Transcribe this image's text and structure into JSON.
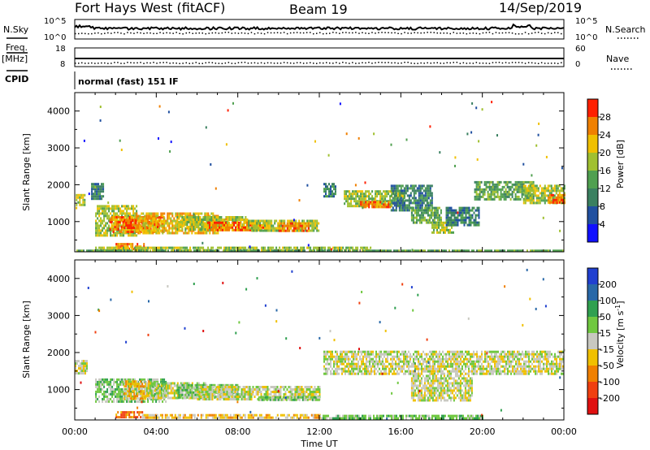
{
  "header": {
    "station": "Fort Hays West (fitACF)",
    "beam": "Beam 19",
    "date": "14/Sep/2019"
  },
  "side_labels": {
    "nsky": "N.Sky",
    "freq": "Freq.",
    "freq_unit": "[MHz]",
    "cpid": "CPID",
    "nsearch": "N.Search",
    "nave": "Nave"
  },
  "mode_text": "normal (fast) 151 IF",
  "chart_data": [
    {
      "type": "line",
      "panel": "noise",
      "series": [
        {
          "name": "N.Sky"
        },
        {
          "name": "N.Search"
        }
      ],
      "y_tick_labels": {
        "left": [
          "10^5",
          "10^0"
        ],
        "right": [
          "10^5",
          "10^0"
        ]
      }
    },
    {
      "type": "line",
      "panel": "frequency",
      "series": [
        {
          "name": "Freq."
        },
        {
          "name": "Nave"
        }
      ],
      "y_tick_labels": {
        "left": [
          "18",
          "8"
        ],
        "right": [
          "60",
          "0"
        ]
      }
    },
    {
      "type": "heatmap",
      "panel": "power",
      "ylabel": "Slant Range [km]",
      "xlim": [
        0,
        24
      ],
      "ylim": [
        180,
        4500
      ],
      "y_ticks": [
        1000,
        2000,
        3000,
        4000
      ],
      "colorbar": {
        "label": "Power [dB]",
        "range": [
          0,
          32
        ],
        "ticks": [
          "4",
          "8",
          "12",
          "16",
          "20",
          "24",
          "28"
        ],
        "colors": [
          "#1010ff",
          "#2050a0",
          "#3a8060",
          "#50a050",
          "#a0c030",
          "#f0c000",
          "#f08000",
          "#ff2000"
        ]
      },
      "regions": [
        {
          "t0": 0.05,
          "t1": 0.5,
          "r0": 1450,
          "r1": 1750,
          "level": 4
        },
        {
          "t0": 0.8,
          "t1": 1.4,
          "r0": 1650,
          "r1": 2050,
          "level": 2
        },
        {
          "t0": 1.0,
          "t1": 3.0,
          "r0": 650,
          "r1": 1450,
          "level": 4
        },
        {
          "t0": 1.7,
          "t1": 4.4,
          "r0": 750,
          "r1": 1150,
          "level": 6
        },
        {
          "t0": 2.4,
          "t1": 3.6,
          "r0": 820,
          "r1": 1060,
          "level": 7
        },
        {
          "t0": 3.0,
          "t1": 7.0,
          "r0": 700,
          "r1": 1250,
          "level": 5
        },
        {
          "t0": 5.0,
          "t1": 8.5,
          "r0": 780,
          "r1": 1150,
          "level": 4
        },
        {
          "t0": 6.5,
          "t1": 9.5,
          "r0": 800,
          "r1": 1000,
          "level": 6
        },
        {
          "t0": 8.5,
          "t1": 12.0,
          "r0": 720,
          "r1": 1050,
          "level": 4
        },
        {
          "t0": 10.0,
          "t1": 11.5,
          "r0": 780,
          "r1": 980,
          "level": 6
        },
        {
          "t0": 12.2,
          "t1": 12.8,
          "r0": 1700,
          "r1": 2050,
          "level": 2
        },
        {
          "t0": 13.2,
          "t1": 16.2,
          "r0": 1400,
          "r1": 1850,
          "level": 4
        },
        {
          "t0": 14.0,
          "t1": 15.5,
          "r0": 1420,
          "r1": 1560,
          "level": 6
        },
        {
          "t0": 15.5,
          "t1": 17.5,
          "r0": 1300,
          "r1": 2000,
          "level": 2
        },
        {
          "t0": 16.5,
          "t1": 18.0,
          "r0": 1000,
          "r1": 1400,
          "level": 3
        },
        {
          "t0": 17.5,
          "t1": 18.6,
          "r0": 700,
          "r1": 1000,
          "level": 4
        },
        {
          "t0": 18.2,
          "t1": 19.8,
          "r0": 900,
          "r1": 1400,
          "level": 2
        },
        {
          "t0": 19.6,
          "t1": 22.5,
          "r0": 1600,
          "r1": 2100,
          "level": 3
        },
        {
          "t0": 22.0,
          "t1": 24.0,
          "r0": 1500,
          "r1": 2000,
          "level": 4
        },
        {
          "t0": 23.2,
          "t1": 24.0,
          "r0": 1500,
          "r1": 1750,
          "level": 6
        },
        {
          "t0": 2.0,
          "t1": 3.4,
          "r0": 260,
          "r1": 420,
          "level": 6
        },
        {
          "t0": 1.0,
          "t1": 14.5,
          "r0": 200,
          "r1": 320,
          "level": 4
        },
        {
          "t0": 0.0,
          "t1": 24.0,
          "r0": 185,
          "r1": 240,
          "level": 3
        }
      ]
    },
    {
      "type": "heatmap",
      "panel": "velocity",
      "xlabel": "Time UT",
      "ylabel": "Slant Range [km]",
      "xlim": [
        0,
        24
      ],
      "ylim": [
        180,
        4500
      ],
      "x_ticks": [
        "00:00",
        "04:00",
        "08:00",
        "12:00",
        "16:00",
        "20:00",
        "00:00"
      ],
      "y_ticks": [
        1000,
        2000,
        3000,
        4000
      ],
      "colorbar": {
        "label": "Velocity [m s^-1]",
        "ticks": [
          "200",
          "100",
          "50",
          "15",
          "-15",
          "-50",
          "-100",
          "-200"
        ],
        "colors": [
          "#2040d0",
          "#2868a8",
          "#30a050",
          "#70c840",
          "#c8c8c0",
          "#f0c000",
          "#f08000",
          "#f04010",
          "#e01010"
        ]
      },
      "regions": [
        {
          "t0": 0.0,
          "t1": 0.6,
          "r0": 1450,
          "r1": 1800,
          "level": 4
        },
        {
          "t0": 1.0,
          "t1": 4.5,
          "r0": 700,
          "r1": 1300,
          "level": 3
        },
        {
          "t0": 2.4,
          "t1": 3.6,
          "r0": 750,
          "r1": 1250,
          "level": 5
        },
        {
          "t0": 3.5,
          "t1": 6.5,
          "r0": 750,
          "r1": 1200,
          "level": 4
        },
        {
          "t0": 5.0,
          "t1": 8.0,
          "r0": 800,
          "r1": 1150,
          "level": 3
        },
        {
          "t0": 6.0,
          "t1": 12.0,
          "r0": 750,
          "r1": 1100,
          "level": 4
        },
        {
          "t0": 9.0,
          "t1": 12.0,
          "r0": 720,
          "r1": 820,
          "level": 3
        },
        {
          "t0": 12.2,
          "t1": 24.0,
          "r0": 1400,
          "r1": 2050,
          "level": 4
        },
        {
          "t0": 16.5,
          "t1": 19.5,
          "r0": 700,
          "r1": 1400,
          "level": 4
        },
        {
          "t0": 2.0,
          "t1": 3.3,
          "r0": 260,
          "r1": 420,
          "level": 6
        },
        {
          "t0": 3.3,
          "t1": 12.0,
          "r0": 220,
          "r1": 340,
          "level": 5
        },
        {
          "t0": 12.0,
          "t1": 20.0,
          "r0": 190,
          "r1": 320,
          "level": 3
        }
      ]
    }
  ]
}
